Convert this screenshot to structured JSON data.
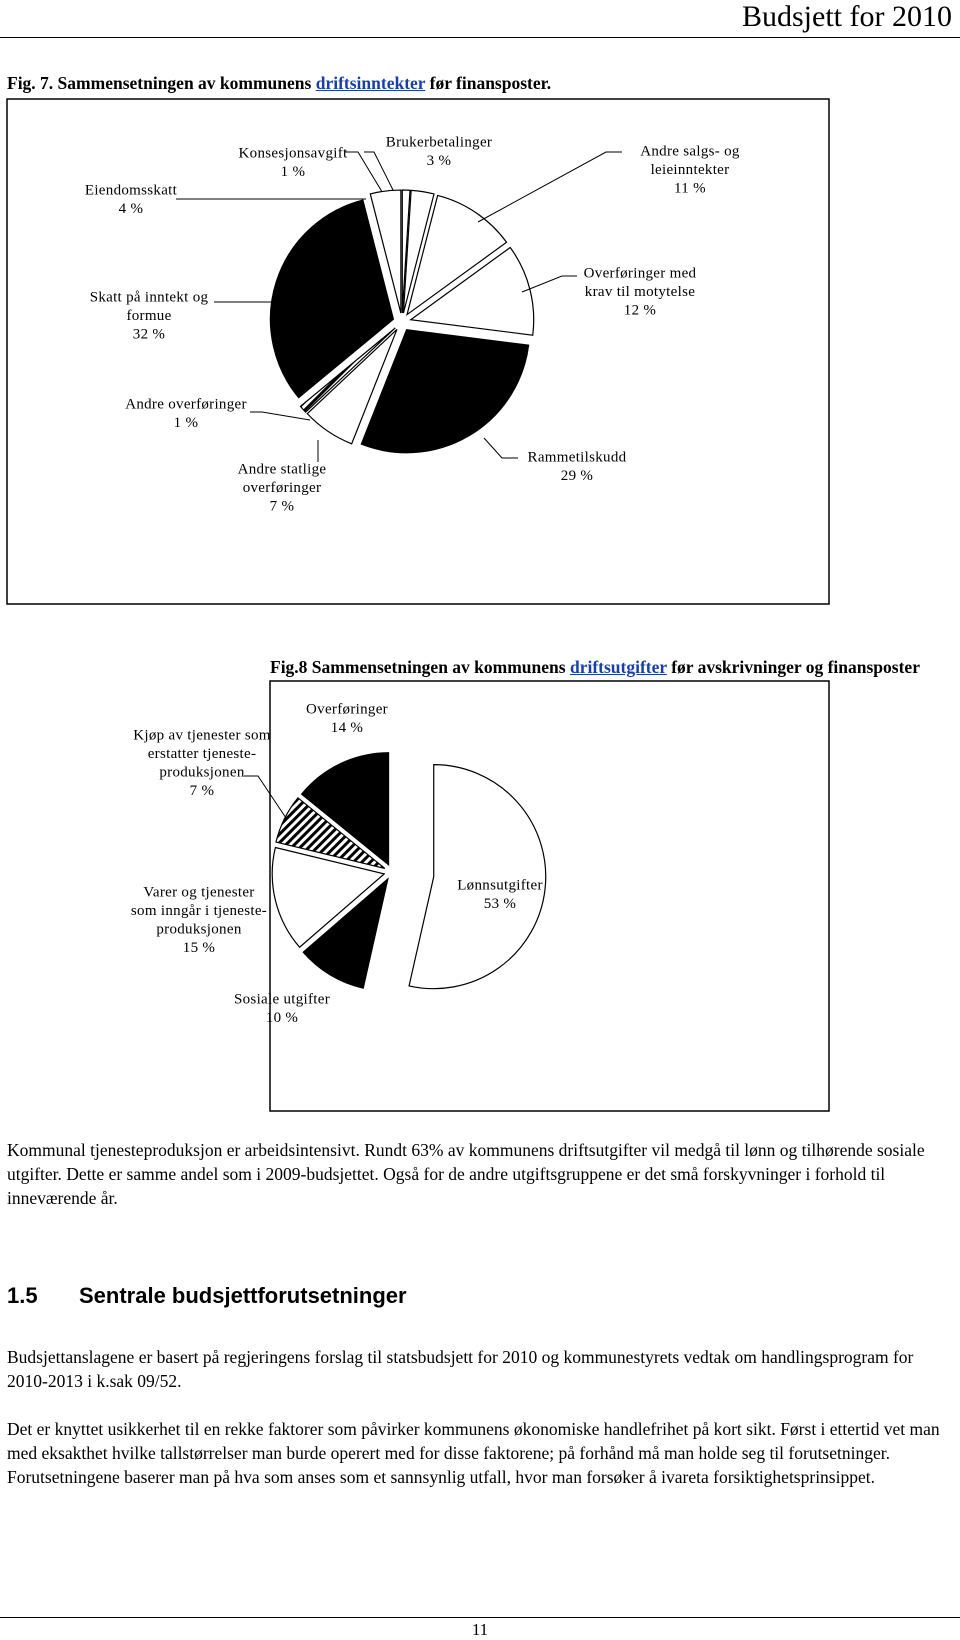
{
  "header": {
    "title": "Budsjett for 2010"
  },
  "figures": [
    {
      "caption_before": "Fig. 7. Sammensetningen av kommunens ",
      "caption_link": "driftsinntekter",
      "caption_after": " før finansposter."
    },
    {
      "caption_before": "Fig.8 Sammensetningen av kommunens ",
      "caption_link": "driftsutgifter",
      "caption_after": " før avskrivninger og finansposter"
    }
  ],
  "chart_data": [
    {
      "type": "pie",
      "categories": [
        [
          "Konsesjonsavgift"
        ],
        [
          "Brukerbetalinger"
        ],
        [
          "Andre salgs- og",
          "leieinntekter"
        ],
        [
          "Overføringer med",
          "krav til motytelse"
        ],
        [
          "Rammetilskudd"
        ],
        [
          "Andre statlige",
          "overføringer"
        ],
        [
          "Andre overføringer"
        ],
        [
          "Skatt på inntekt og",
          "formue"
        ],
        [
          "Eiendomsskatt"
        ]
      ],
      "values": [
        1,
        3,
        11,
        12,
        29,
        7,
        1,
        32,
        4
      ],
      "value_labels": [
        "1 %",
        "3 %",
        "11 %",
        "12 %",
        "29 %",
        "7 %",
        "1 %",
        "32 %",
        "4 %"
      ],
      "colors": [
        "#ffffff",
        "#ffffff",
        "#ffffff",
        "#ffffff",
        "#000000",
        "#ffffff",
        "hatched",
        "#000000",
        "#ffffff"
      ]
    },
    {
      "type": "pie",
      "categories": [
        [
          "Lønnsutgifter"
        ],
        [
          "Sosiale utgifter"
        ],
        [
          "Varer og tjenester",
          "som inngår i tjeneste-",
          "produksjonen"
        ],
        [
          "Kjøp av tjenester som",
          "erstatter tjeneste-",
          "produksjonen"
        ],
        [
          "Overføringer"
        ]
      ],
      "values": [
        53,
        10,
        15,
        7,
        14
      ],
      "value_labels": [
        "53 %",
        "10 %",
        "15 %",
        "7 %",
        "14 %"
      ],
      "colors": [
        "#ffffff",
        "#000000",
        "#ffffff",
        "hatched",
        "#000000"
      ]
    }
  ],
  "body": {
    "paragraphs": [
      "Kommunal tjenesteproduksjon er arbeidsintensivt. Rundt 63% av kommunens driftsutgifter vil medgå til lønn og tilhørende sosiale utgifter. Dette er samme andel som i 2009-budsjettet. Også for de andre utgiftsgruppene er det små forskyvninger i forhold til inneværende år."
    ],
    "section": {
      "number": "1.5",
      "title": "Sentrale budsjettforutsetninger"
    },
    "section_paragraphs": [
      "Budsjettanslagene er basert på regjeringens forslag til statsbudsjett for 2010 og kommunestyrets vedtak om handlingsprogram for 2010-2013 i k.sak 09/52.",
      "Det er knyttet usikkerhet til en rekke faktorer som påvirker kommunens økonomiske handlefrihet på kort sikt. Først i ettertid vet man med eksakthet hvilke tallstørrelser man burde operert med for disse faktorene; på forhånd må man holde seg til forutsetninger. Forutsetningene baserer man på hva som anses som et sannsynlig utfall, hvor man forsøker å ivareta forsiktighetsprinsippet."
    ]
  },
  "footer": {
    "page_number": "11"
  }
}
